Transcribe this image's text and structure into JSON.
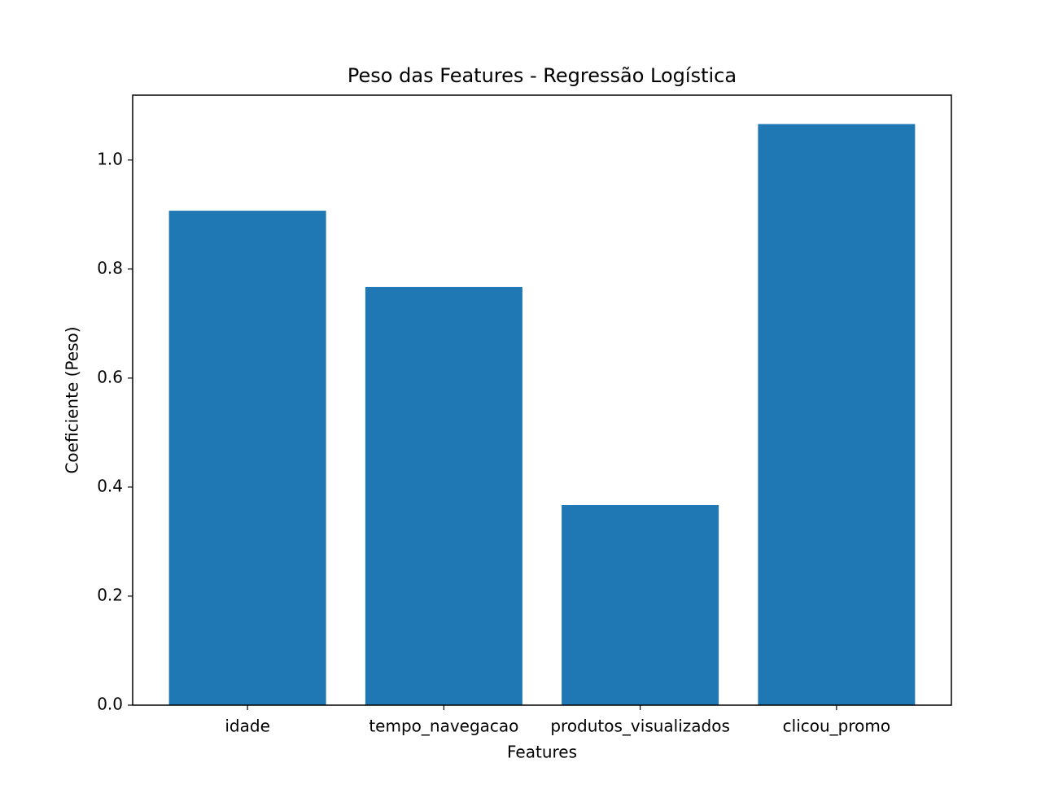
{
  "chart_data": {
    "type": "bar",
    "title": "Peso das Features - Regressão Logística",
    "x_label": "Features",
    "y_label": "Coeficiente (Peso)",
    "categories": [
      "idade",
      "tempo_navegacao",
      "produtos_visualizados",
      "clicou_promo"
    ],
    "values": [
      0.907,
      0.767,
      0.367,
      1.066
    ],
    "color": "#1f77b4",
    "ylim": [
      0,
      1.119
    ],
    "yticks": [
      {
        "value": 0,
        "label": "0.0"
      },
      0.2,
      0.4,
      0.6,
      0.8,
      {
        "value": 1,
        "label": "1.0"
      }
    ],
    "grid": false
  }
}
